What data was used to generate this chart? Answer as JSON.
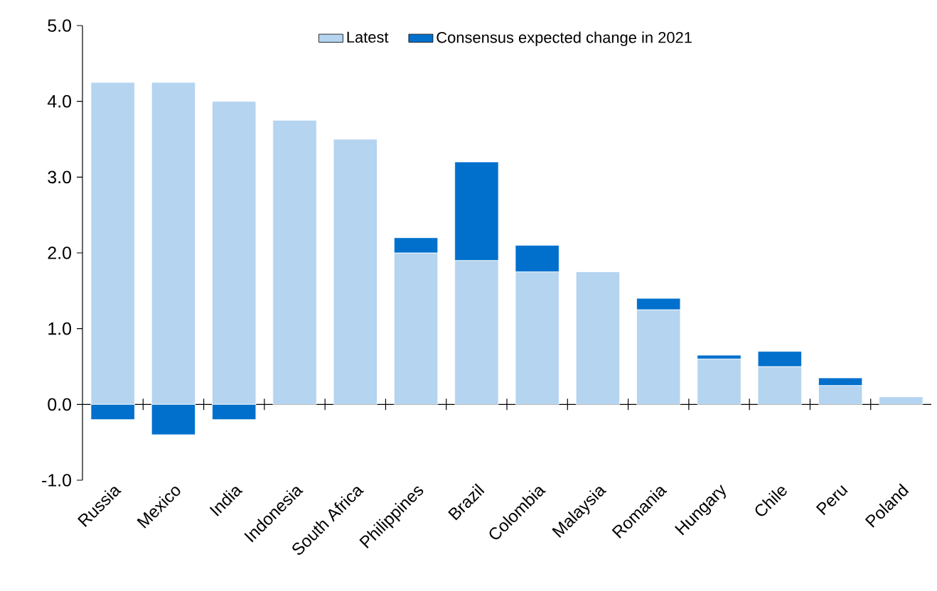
{
  "chart_data": {
    "type": "bar",
    "stacked": true,
    "legend": "top",
    "grid": false,
    "categories": [
      "Russia",
      "Mexico",
      "India",
      "Indonesia",
      "South Africa",
      "Philippines",
      "Brazil",
      "Colombia",
      "Malaysia",
      "Romania",
      "Hungary",
      "Chile",
      "Peru",
      "Poland"
    ],
    "series": [
      {
        "name": "Latest",
        "color": "#b4d4f0",
        "values": [
          4.25,
          4.25,
          4.0,
          3.75,
          3.5,
          2.0,
          1.9,
          1.75,
          1.75,
          1.25,
          0.6,
          0.5,
          0.25,
          0.1
        ]
      },
      {
        "name": "Consensus expected change in 2021",
        "color": "#0070cc",
        "values": [
          -0.2,
          -0.4,
          -0.2,
          0,
          0,
          0.2,
          1.3,
          0.35,
          0,
          0.15,
          0.05,
          0.2,
          0.1,
          0
        ]
      }
    ],
    "ylim": [
      -1,
      5
    ],
    "ref_lines": [
      {
        "axis": "y",
        "value": 0,
        "color": "#000000"
      }
    ],
    "yticks": [
      {
        "value": -1,
        "label": "-1.0"
      },
      {
        "value": 0,
        "label": "0.0"
      },
      {
        "value": 1,
        "label": "1.0"
      },
      {
        "value": 2,
        "label": "2.0"
      },
      {
        "value": 3,
        "label": "3.0"
      },
      {
        "value": 4,
        "label": "4.0"
      },
      {
        "value": 5,
        "label": "5.0"
      }
    ]
  }
}
